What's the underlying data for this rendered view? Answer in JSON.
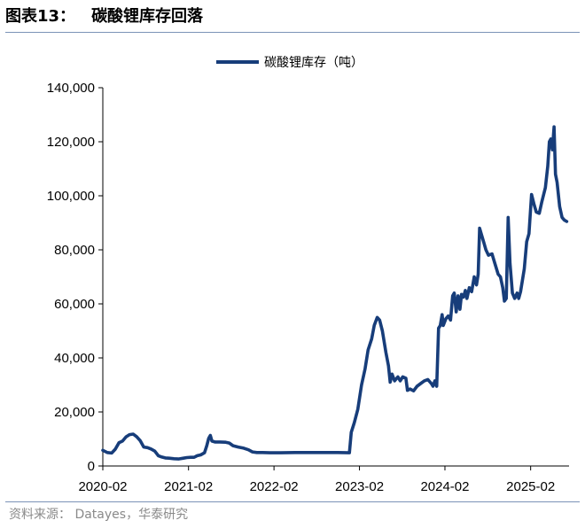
{
  "figure": {
    "label": "图表13：",
    "title": "碳酸锂库存回落",
    "source": "资料来源：  Datayes，华泰研究"
  },
  "chart_data": {
    "type": "line",
    "title": "",
    "xlabel": "",
    "ylabel": "",
    "ylim": [
      0,
      140000
    ],
    "yticks": [
      0,
      20000,
      40000,
      60000,
      80000,
      100000,
      120000,
      140000
    ],
    "ytick_labels": [
      "0",
      "20,000",
      "40,000",
      "60,000",
      "80,000",
      "100,000",
      "120,000",
      "140,000"
    ],
    "xlim": [
      "2020-02-01",
      "2025-07-15"
    ],
    "xticks": [
      "2020-02",
      "2021-02",
      "2022-02",
      "2023-02",
      "2024-02",
      "2025-02"
    ],
    "grid": false,
    "legend_position": "top-center",
    "series": [
      {
        "name": "碳酸锂库存（吨）",
        "color": "#173d7a",
        "points": [
          [
            "2020-02-01",
            5800
          ],
          [
            "2020-02-20",
            5000
          ],
          [
            "2020-03-10",
            4800
          ],
          [
            "2020-03-25",
            6200
          ],
          [
            "2020-04-10",
            8600
          ],
          [
            "2020-04-25",
            9200
          ],
          [
            "2020-05-10",
            10800
          ],
          [
            "2020-05-25",
            11600
          ],
          [
            "2020-06-10",
            11800
          ],
          [
            "2020-06-25",
            10800
          ],
          [
            "2020-07-10",
            9300
          ],
          [
            "2020-07-25",
            7000
          ],
          [
            "2020-08-10",
            6800
          ],
          [
            "2020-08-25",
            6300
          ],
          [
            "2020-09-10",
            5500
          ],
          [
            "2020-09-25",
            3800
          ],
          [
            "2020-10-10",
            3300
          ],
          [
            "2020-10-25",
            3000
          ],
          [
            "2020-11-10",
            2900
          ],
          [
            "2020-12-01",
            2700
          ],
          [
            "2020-12-20",
            2600
          ],
          [
            "2021-01-10",
            2900
          ],
          [
            "2021-01-25",
            3100
          ],
          [
            "2021-02-10",
            3200
          ],
          [
            "2021-02-25",
            3200
          ],
          [
            "2021-03-10",
            3800
          ],
          [
            "2021-03-25",
            4100
          ],
          [
            "2021-04-10",
            4900
          ],
          [
            "2021-04-20",
            7500
          ],
          [
            "2021-04-28",
            10200
          ],
          [
            "2021-05-05",
            11300
          ],
          [
            "2021-05-12",
            9200
          ],
          [
            "2021-05-25",
            8900
          ],
          [
            "2021-06-15",
            8900
          ],
          [
            "2021-07-10",
            8800
          ],
          [
            "2021-07-25",
            8500
          ],
          [
            "2021-08-10",
            7500
          ],
          [
            "2021-09-01",
            7000
          ],
          [
            "2021-09-25",
            6600
          ],
          [
            "2021-10-15",
            6000
          ],
          [
            "2021-11-01",
            5200
          ],
          [
            "2021-11-20",
            5000
          ],
          [
            "2021-12-15",
            5000
          ],
          [
            "2022-01-15",
            4900
          ],
          [
            "2022-03-01",
            4900
          ],
          [
            "2022-05-01",
            5000
          ],
          [
            "2022-07-01",
            5000
          ],
          [
            "2022-09-01",
            5000
          ],
          [
            "2022-11-01",
            5000
          ],
          [
            "2022-12-20",
            4900
          ],
          [
            "2022-12-28",
            12500
          ],
          [
            "2023-01-10",
            16000
          ],
          [
            "2023-01-25",
            21000
          ],
          [
            "2023-02-10",
            30000
          ],
          [
            "2023-02-25",
            36000
          ],
          [
            "2023-03-10",
            43000
          ],
          [
            "2023-03-25",
            47000
          ],
          [
            "2023-04-05",
            52000
          ],
          [
            "2023-04-18",
            55000
          ],
          [
            "2023-04-28",
            54000
          ],
          [
            "2023-05-10",
            50000
          ],
          [
            "2023-05-25",
            42000
          ],
          [
            "2023-06-05",
            37000
          ],
          [
            "2023-06-12",
            31000
          ],
          [
            "2023-06-20",
            34000
          ],
          [
            "2023-07-01",
            31500
          ],
          [
            "2023-07-15",
            33000
          ],
          [
            "2023-07-25",
            31500
          ],
          [
            "2023-08-05",
            33000
          ],
          [
            "2023-08-18",
            32500
          ],
          [
            "2023-08-25",
            28000
          ],
          [
            "2023-09-05",
            28500
          ],
          [
            "2023-09-20",
            27800
          ],
          [
            "2023-10-05",
            29500
          ],
          [
            "2023-10-20",
            30500
          ],
          [
            "2023-11-05",
            31500
          ],
          [
            "2023-11-20",
            32000
          ],
          [
            "2023-12-05",
            30500
          ],
          [
            "2023-12-12",
            29500
          ],
          [
            "2023-12-20",
            31500
          ],
          [
            "2023-12-28",
            29500
          ],
          [
            "2024-01-05",
            51000
          ],
          [
            "2024-01-12",
            52000
          ],
          [
            "2024-01-20",
            56000
          ],
          [
            "2024-01-25",
            52000
          ],
          [
            "2024-02-05",
            54500
          ],
          [
            "2024-02-15",
            55500
          ],
          [
            "2024-02-25",
            54000
          ],
          [
            "2024-03-05",
            63000
          ],
          [
            "2024-03-12",
            64000
          ],
          [
            "2024-03-20",
            57000
          ],
          [
            "2024-03-28",
            63000
          ],
          [
            "2024-04-05",
            58000
          ],
          [
            "2024-04-12",
            63500
          ],
          [
            "2024-04-20",
            62500
          ],
          [
            "2024-04-28",
            65000
          ],
          [
            "2024-05-05",
            62000
          ],
          [
            "2024-05-15",
            66000
          ],
          [
            "2024-05-25",
            64500
          ],
          [
            "2024-06-05",
            70000
          ],
          [
            "2024-06-15",
            67000
          ],
          [
            "2024-06-22",
            71000
          ],
          [
            "2024-06-28",
            88000
          ],
          [
            "2024-07-05",
            86000
          ],
          [
            "2024-07-15",
            83000
          ],
          [
            "2024-07-25",
            80000
          ],
          [
            "2024-08-05",
            78000
          ],
          [
            "2024-08-20",
            78500
          ],
          [
            "2024-09-01",
            75000
          ],
          [
            "2024-09-15",
            71000
          ],
          [
            "2024-09-25",
            70000
          ],
          [
            "2024-10-05",
            66000
          ],
          [
            "2024-10-12",
            61000
          ],
          [
            "2024-10-20",
            62000
          ],
          [
            "2024-10-28",
            92000
          ],
          [
            "2024-11-05",
            75000
          ],
          [
            "2024-11-15",
            64000
          ],
          [
            "2024-11-25",
            62000
          ],
          [
            "2024-12-05",
            64000
          ],
          [
            "2024-12-12",
            62000
          ],
          [
            "2024-12-20",
            64500
          ],
          [
            "2025-01-05",
            73000
          ],
          [
            "2025-01-15",
            83000
          ],
          [
            "2025-01-25",
            86000
          ],
          [
            "2025-02-05",
            100500
          ],
          [
            "2025-02-15",
            97000
          ],
          [
            "2025-02-25",
            94000
          ],
          [
            "2025-03-10",
            93500
          ],
          [
            "2025-03-20",
            97500
          ],
          [
            "2025-04-05",
            103000
          ],
          [
            "2025-04-15",
            111000
          ],
          [
            "2025-04-22",
            120000
          ],
          [
            "2025-04-28",
            121000
          ],
          [
            "2025-05-05",
            117000
          ],
          [
            "2025-05-12",
            125500
          ],
          [
            "2025-05-18",
            108000
          ],
          [
            "2025-05-25",
            105000
          ],
          [
            "2025-06-05",
            96000
          ],
          [
            "2025-06-15",
            92000
          ],
          [
            "2025-06-25",
            91000
          ],
          [
            "2025-07-05",
            90500
          ]
        ]
      }
    ]
  }
}
